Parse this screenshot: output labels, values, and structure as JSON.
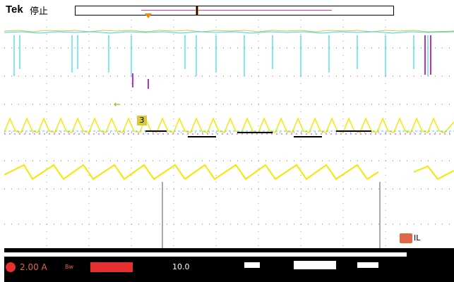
{
  "header": {
    "brand": "Tek",
    "run_state": "停止"
  },
  "channel_ref": {
    "label": "IL"
  },
  "ch3_marker": {
    "label": "3"
  },
  "footer": {
    "ch_scale": "2.00 A",
    "bw_label": "Bw",
    "time_value": "10.0"
  },
  "colors": {
    "ch1_yellow": "#f2e800",
    "ch2_cyan": "#30d8e8",
    "ch4_magenta": "#c030c0",
    "trigger_orange": "#f08a00",
    "ch_red": "#e63030"
  },
  "icons": {
    "run_state": "stop-icon",
    "trigger": "trigger-position-icon"
  }
}
